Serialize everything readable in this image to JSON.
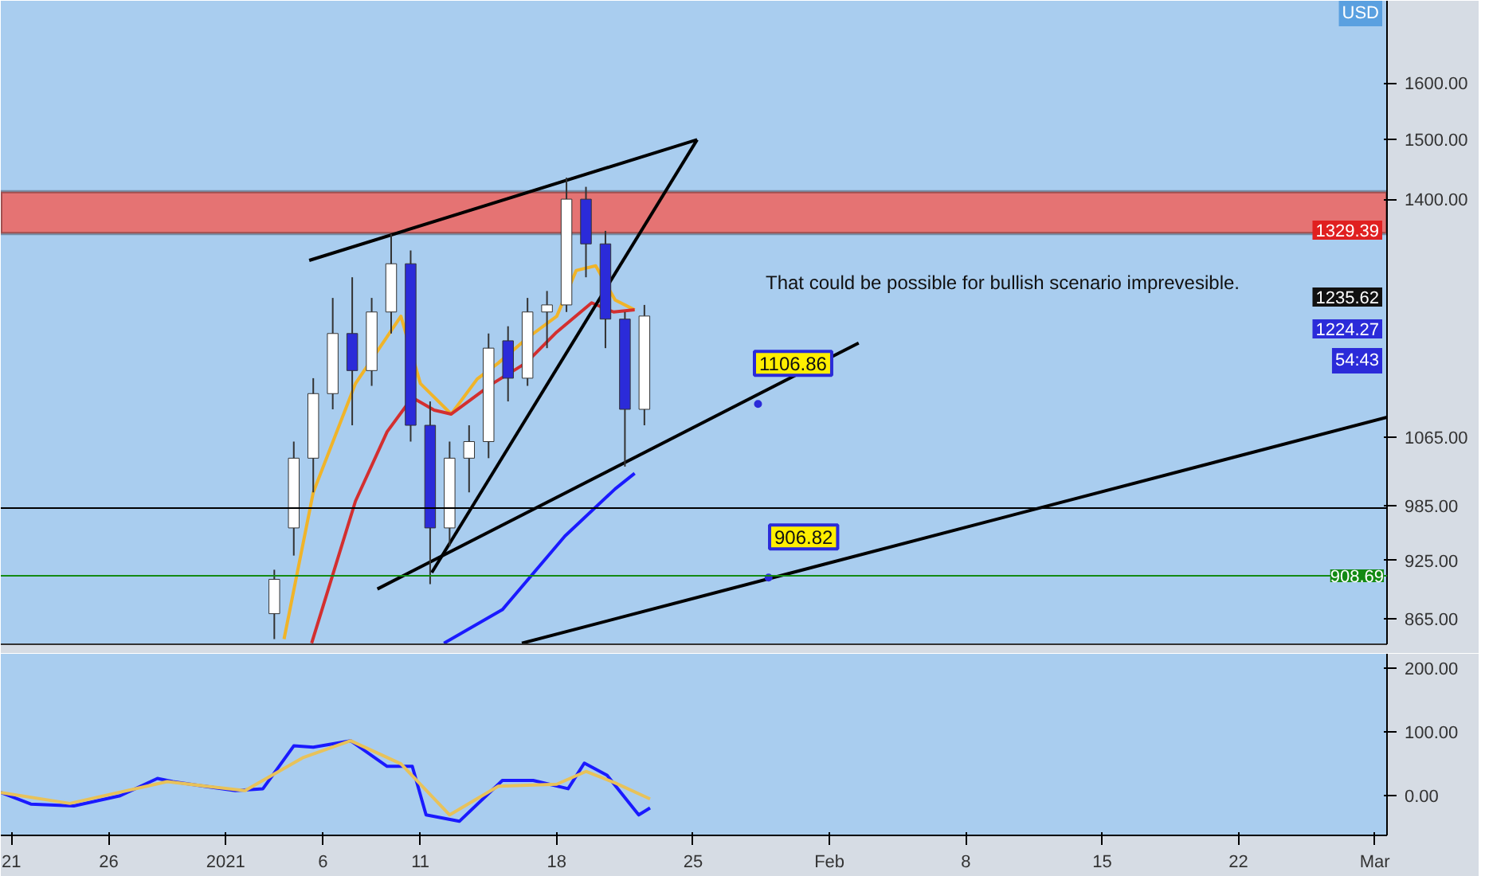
{
  "chart_data": [
    {
      "type": "candlestick",
      "log": "y",
      "tick_labels": "y",
      "xlim": [
        "2020-12-20T11:00",
        "2021-03-01T15:00"
      ],
      "ylim": [
        840,
        1758
      ],
      "yticks": [
        {
          "value": 1600,
          "label": "1600.00"
        },
        {
          "value": 1500,
          "label": "1500.00"
        },
        {
          "value": 1400,
          "label": "1400.00"
        },
        {
          "value": 1065,
          "label": "1065.00"
        },
        {
          "value": 985,
          "label": "985.00"
        },
        {
          "value": 925,
          "label": "925.00"
        },
        {
          "value": 865,
          "label": "865.00"
        }
      ],
      "x": [
        "2021-01-03T12:00",
        "2021-01-04T12:00",
        "2021-01-05T12:00",
        "2021-01-06T12:00",
        "2021-01-07T12:00",
        "2021-01-08T12:00",
        "2021-01-09T12:00",
        "2021-01-10T12:00",
        "2021-01-11T12:00",
        "2021-01-12T12:00",
        "2021-01-13T12:00",
        "2021-01-14T12:00",
        "2021-01-15T12:00",
        "2021-01-16T12:00",
        "2021-01-17T12:00",
        "2021-01-18T12:00",
        "2021-01-19T12:00",
        "2021-01-20T12:00",
        "2021-01-21T12:00",
        "2021-01-22T12:00"
      ],
      "ohlc": [
        [
          870,
          915,
          845,
          905
        ],
        [
          960,
          1060,
          930,
          1040
        ],
        [
          1040,
          1140,
          1000,
          1120
        ],
        [
          1120,
          1250,
          1100,
          1200
        ],
        [
          1200,
          1280,
          1080,
          1150
        ],
        [
          1150,
          1250,
          1130,
          1230
        ],
        [
          1230,
          1345,
          1200,
          1300
        ],
        [
          1300,
          1320,
          1060,
          1080
        ],
        [
          1080,
          1110,
          900,
          960
        ],
        [
          960,
          1060,
          940,
          1040
        ],
        [
          1040,
          1080,
          1000,
          1060
        ],
        [
          1060,
          1200,
          1040,
          1180
        ],
        [
          1190,
          1210,
          1110,
          1140
        ],
        [
          1140,
          1250,
          1130,
          1230
        ],
        [
          1230,
          1260,
          1180,
          1240
        ],
        [
          1240,
          1435,
          1230,
          1400
        ],
        [
          1400,
          1420,
          1280,
          1330
        ],
        [
          1330,
          1350,
          1180,
          1220
        ],
        [
          1220,
          1230,
          1030,
          1100
        ],
        [
          1100,
          1240,
          1080,
          1224.27
        ]
      ],
      "colors": [
        "#ffffff",
        "#ffffff",
        "#ffffff",
        "#ffffff",
        "#2b2bd9",
        "#ffffff",
        "#ffffff",
        "#2b2bd9",
        "#2b2bd9",
        "#ffffff",
        "#ffffff",
        "#ffffff",
        "#2b2bd9",
        "#ffffff",
        "#ffffff",
        "#ffffff",
        "#2b2bd9",
        "#2b2bd9",
        "#2b2bd9",
        "#ffffff"
      ],
      "series": [
        {
          "type": "line",
          "color": "#f0b429",
          "x": [
            "2021-01-04T00:00",
            "2021-01-05T12:00",
            "2021-01-07T16:00",
            "2021-01-10T00:00",
            "2021-01-11T00:00",
            "2021-01-12T14:00",
            "2021-01-13T22:00",
            "2021-01-15T00:00",
            "2021-01-16T12:00",
            "2021-01-18T00:00",
            "2021-01-19T00:00",
            "2021-01-20T00:00",
            "2021-01-21T00:00",
            "2021-01-22T00:00"
          ],
          "values": [
            845,
            1000,
            1133,
            1224,
            1133,
            1094,
            1139,
            1160,
            1194,
            1224,
            1290,
            1297,
            1247,
            1233
          ]
        },
        {
          "type": "line",
          "color": "#d32f2f",
          "x": [
            "2021-01-05T10:00",
            "2021-01-07T16:00",
            "2021-01-09T07:00",
            "2021-01-10T14:00",
            "2021-01-11T17:00",
            "2021-01-12T14:00",
            "2021-01-14T17:00",
            "2021-01-16T10:00",
            "2021-01-18T00:00",
            "2021-01-19T19:00",
            "2021-01-20T22:00",
            "2021-01-22T00:00"
          ],
          "values": [
            841,
            990,
            1072,
            1115,
            1099,
            1094,
            1133,
            1160,
            1202,
            1243,
            1230,
            1233
          ]
        },
        {
          "type": "line",
          "color": "#1a1aff",
          "x": [
            "2021-01-12T05:00",
            "2021-01-15T05:00",
            "2021-01-18T10:00",
            "2021-01-21T00:00",
            "2021-01-22T00:00"
          ],
          "values": [
            841,
            874,
            951,
            1004,
            1022
          ]
        },
        {
          "type": "line",
          "color": "#000000",
          "x": [
            "2021-01-05T07:00",
            "2021-01-25T05:00"
          ],
          "values": [
            1305,
            1499
          ]
        },
        {
          "type": "line",
          "color": "#000000",
          "x": [
            "2021-01-11T14:00",
            "2021-01-25T05:00"
          ],
          "values": [
            912,
            1499
          ]
        },
        {
          "type": "line",
          "color": "#000000",
          "x": [
            "2021-01-08T19:00",
            "2021-02-02T12:00"
          ],
          "values": [
            895,
            1187
          ]
        },
        {
          "type": "line",
          "color": "#000000",
          "x": [
            "2021-01-16T05:00",
            "2021-03-01T15:00"
          ],
          "values": [
            841,
            1090
          ]
        }
      ],
      "bands": [
        {
          "axis": "y",
          "from": 1346,
          "to": 1412,
          "color": "#e57373"
        }
      ],
      "ref_lines": [
        {
          "axis": "y",
          "value": 982,
          "color": "#000000"
        },
        {
          "axis": "y",
          "value": 908.69,
          "label": "908.69",
          "color": "#138a13"
        }
      ],
      "annotations": [
        "That could be possible for bullish scenario imprevesible.",
        "USD",
        "1329.39",
        "1235.62",
        "1224.27",
        "54:43",
        {
          "text": "1106.86",
          "x": "2021-01-28T08:00",
          "y": 1106.86
        },
        {
          "text": "906.82",
          "x": "2021-01-28T21:00",
          "y": 906.82
        }
      ]
    },
    {
      "type": "line",
      "xlim": [
        "2020-12-20T11:00",
        "2021-03-01T15:00"
      ],
      "ylim": [
        -62,
        222
      ],
      "yticks": [
        {
          "value": 200,
          "label": "200.00"
        },
        {
          "value": 100,
          "label": "100.00"
        },
        {
          "value": 0,
          "label": "0.00"
        }
      ],
      "xticks": [
        {
          "value": "2020-12-21",
          "label": "21"
        },
        {
          "value": "2020-12-26",
          "label": "26"
        },
        {
          "value": "2021-01-01",
          "label": "2021"
        },
        {
          "value": "2021-01-06",
          "label": "6"
        },
        {
          "value": "2021-01-11",
          "label": "11"
        },
        {
          "value": "2021-01-18",
          "label": "18"
        },
        {
          "value": "2021-01-25",
          "label": "25"
        },
        {
          "value": "2021-02-01",
          "label": "Feb"
        },
        {
          "value": "2021-02-08",
          "label": "8"
        },
        {
          "value": "2021-02-15",
          "label": "15"
        },
        {
          "value": "2021-02-22",
          "label": "22"
        },
        {
          "value": "2021-03-01",
          "label": "Mar"
        }
      ],
      "series": [
        {
          "color": "#1a1aff",
          "x": [
            "2020-12-20T11:00",
            "2020-12-22T00:00",
            "2020-12-24T05:00",
            "2020-12-26T14:00",
            "2020-12-28T12:00",
            "2020-12-29T07:00",
            "2021-01-01T12:00",
            "2021-01-02T22:00",
            "2021-01-04T12:00",
            "2021-01-05T12:00",
            "2021-01-07T10:00",
            "2021-01-09T07:00",
            "2021-01-10T14:00",
            "2021-01-11T07:00",
            "2021-01-13T00:00",
            "2021-01-15T05:00",
            "2021-01-16T19:00",
            "2021-01-18T14:00",
            "2021-01-19T10:00",
            "2021-01-20T14:00",
            "2021-01-22T05:00",
            "2021-01-22T19:00"
          ],
          "values": [
            5,
            -13,
            -16,
            0,
            27,
            22,
            8,
            11,
            78,
            76,
            86,
            46,
            46,
            -30,
            -40,
            24,
            24,
            11,
            51,
            32,
            -30,
            -19
          ]
        },
        {
          "color": "#e8c25a",
          "x": [
            "2020-12-20T11:00",
            "2020-12-24T00:00",
            "2020-12-29T00:00",
            "2021-01-02T00:00",
            "2021-01-05T00:00",
            "2021-01-07T10:00",
            "2021-01-10T00:00",
            "2021-01-12T12:00",
            "2021-01-15T00:00",
            "2021-01-18T00:00",
            "2021-01-19T12:00",
            "2021-01-21T00:00",
            "2021-01-22T19:00"
          ],
          "values": [
            5,
            -12,
            22,
            8,
            60,
            86,
            50,
            -30,
            15,
            18,
            38,
            20,
            -5
          ]
        }
      ]
    }
  ]
}
